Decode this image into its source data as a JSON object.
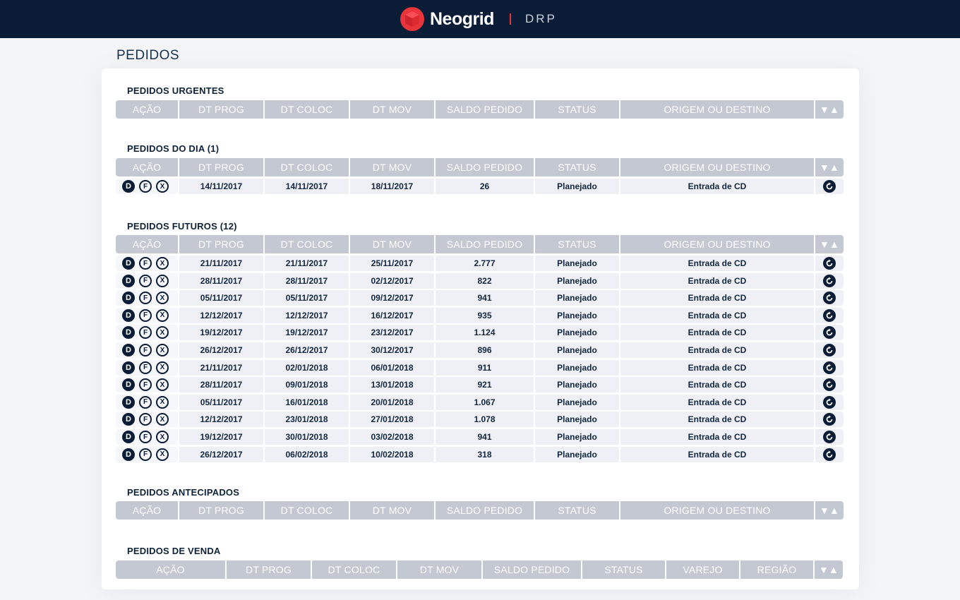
{
  "header": {
    "brand": "Neogrid",
    "module": "DRP"
  },
  "page": {
    "title": "PEDIDOS"
  },
  "columns_default": [
    "AÇÃO",
    "DT PROG",
    "DT COLOC",
    "DT MOV",
    "SALDO PEDIDO",
    "STATUS",
    "ORIGEM OU DESTINO"
  ],
  "columns_venda": [
    "AÇÃO",
    "DT PROG",
    "DT COLOC",
    "DT MOV",
    "SALDO PEDIDO",
    "STATUS",
    "VAREJO",
    "REGIÃO"
  ],
  "sort_label": "▼▲",
  "action_labels": {
    "d": "D",
    "f": "F",
    "x": "X"
  },
  "sections": {
    "urgentes": {
      "title": "PEDIDOS URGENTES",
      "rows": []
    },
    "dia": {
      "title": "PEDIDOS DO DIA (1)",
      "rows": [
        [
          "14/11/2017",
          "14/11/2017",
          "18/11/2017",
          "26",
          "Planejado",
          "Entrada de CD"
        ]
      ]
    },
    "futuros": {
      "title": "PEDIDOS FUTUROS (12)",
      "rows": [
        [
          "21/11/2017",
          "21/11/2017",
          "25/11/2017",
          "2.777",
          "Planejado",
          "Entrada de CD"
        ],
        [
          "28/11/2017",
          "28/11/2017",
          "02/12/2017",
          "822",
          "Planejado",
          "Entrada de CD"
        ],
        [
          "05/11/2017",
          "05/11/2017",
          "09/12/2017",
          "941",
          "Planejado",
          "Entrada de CD"
        ],
        [
          "12/12/2017",
          "12/12/2017",
          "16/12/2017",
          "935",
          "Planejado",
          "Entrada de CD"
        ],
        [
          "19/12/2017",
          "19/12/2017",
          "23/12/2017",
          "1.124",
          "Planejado",
          "Entrada de CD"
        ],
        [
          "26/12/2017",
          "26/12/2017",
          "30/12/2017",
          "896",
          "Planejado",
          "Entrada de CD"
        ],
        [
          "21/11/2017",
          "02/01/2018",
          "06/01/2018",
          "911",
          "Planejado",
          "Entrada de CD"
        ],
        [
          "28/11/2017",
          "09/01/2018",
          "13/01/2018",
          "921",
          "Planejado",
          "Entrada de CD"
        ],
        [
          "05/11/2017",
          "16/01/2018",
          "20/01/2018",
          "1.067",
          "Planejado",
          "Entrada de CD"
        ],
        [
          "12/12/2017",
          "23/01/2018",
          "27/01/2018",
          "1.078",
          "Planejado",
          "Entrada de CD"
        ],
        [
          "19/12/2017",
          "30/01/2018",
          "03/02/2018",
          "941",
          "Planejado",
          "Entrada de CD"
        ],
        [
          "26/12/2017",
          "06/02/2018",
          "10/02/2018",
          "318",
          "Planejado",
          "Entrada de CD"
        ]
      ]
    },
    "antecipados": {
      "title": "PEDIDOS ANTECIPADOS",
      "rows": []
    },
    "venda": {
      "title": "PEDIDOS DE VENDA",
      "rows": []
    }
  }
}
